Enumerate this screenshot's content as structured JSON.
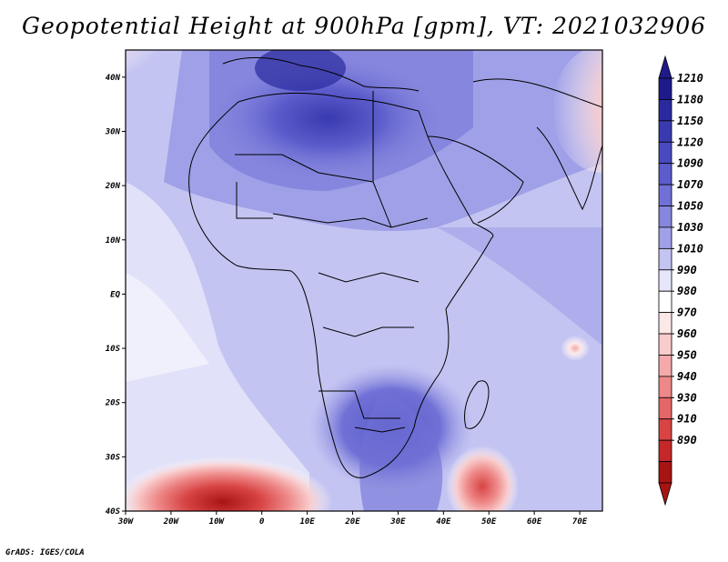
{
  "title": "Geopotential Height at 900hPa [gpm], VT: 2021032906",
  "credit": "GrADS: IGES/COLA",
  "map": {
    "lon_range": [
      -30,
      75
    ],
    "lat_range": [
      -40,
      45
    ],
    "field": "Geopotential Height",
    "level": "900hPa",
    "units": "gpm",
    "valid_time": "2021032906",
    "x_tick_labels": [
      "30W",
      "20W",
      "10W",
      "0",
      "10E",
      "20E",
      "30E",
      "40E",
      "50E",
      "60E",
      "70E"
    ],
    "y_tick_labels": [
      "40N",
      "30N",
      "20N",
      "10N",
      "EQ",
      "10S",
      "20S",
      "30S",
      "40S"
    ]
  },
  "colorbar": {
    "levels": [
      "1210",
      "1180",
      "1150",
      "1120",
      "1090",
      "1070",
      "1050",
      "1030",
      "1010",
      "990",
      "980",
      "970",
      "960",
      "950",
      "940",
      "930",
      "910",
      "890"
    ],
    "colors": [
      "#1e1a8c",
      "#2a2a9e",
      "#3a3ab0",
      "#4a4ac0",
      "#5c5ccc",
      "#7070d6",
      "#8686de",
      "#a0a0e8",
      "#c4c4f2",
      "#e6e6fa",
      "#ffffff",
      "#fde8e8",
      "#f9cccc",
      "#f4aaaa",
      "#ee8888",
      "#e56666",
      "#d84444",
      "#c42828",
      "#a81414"
    ],
    "top_arrow_color": "#1e1a8c",
    "bottom_arrow_color": "#a81414"
  }
}
